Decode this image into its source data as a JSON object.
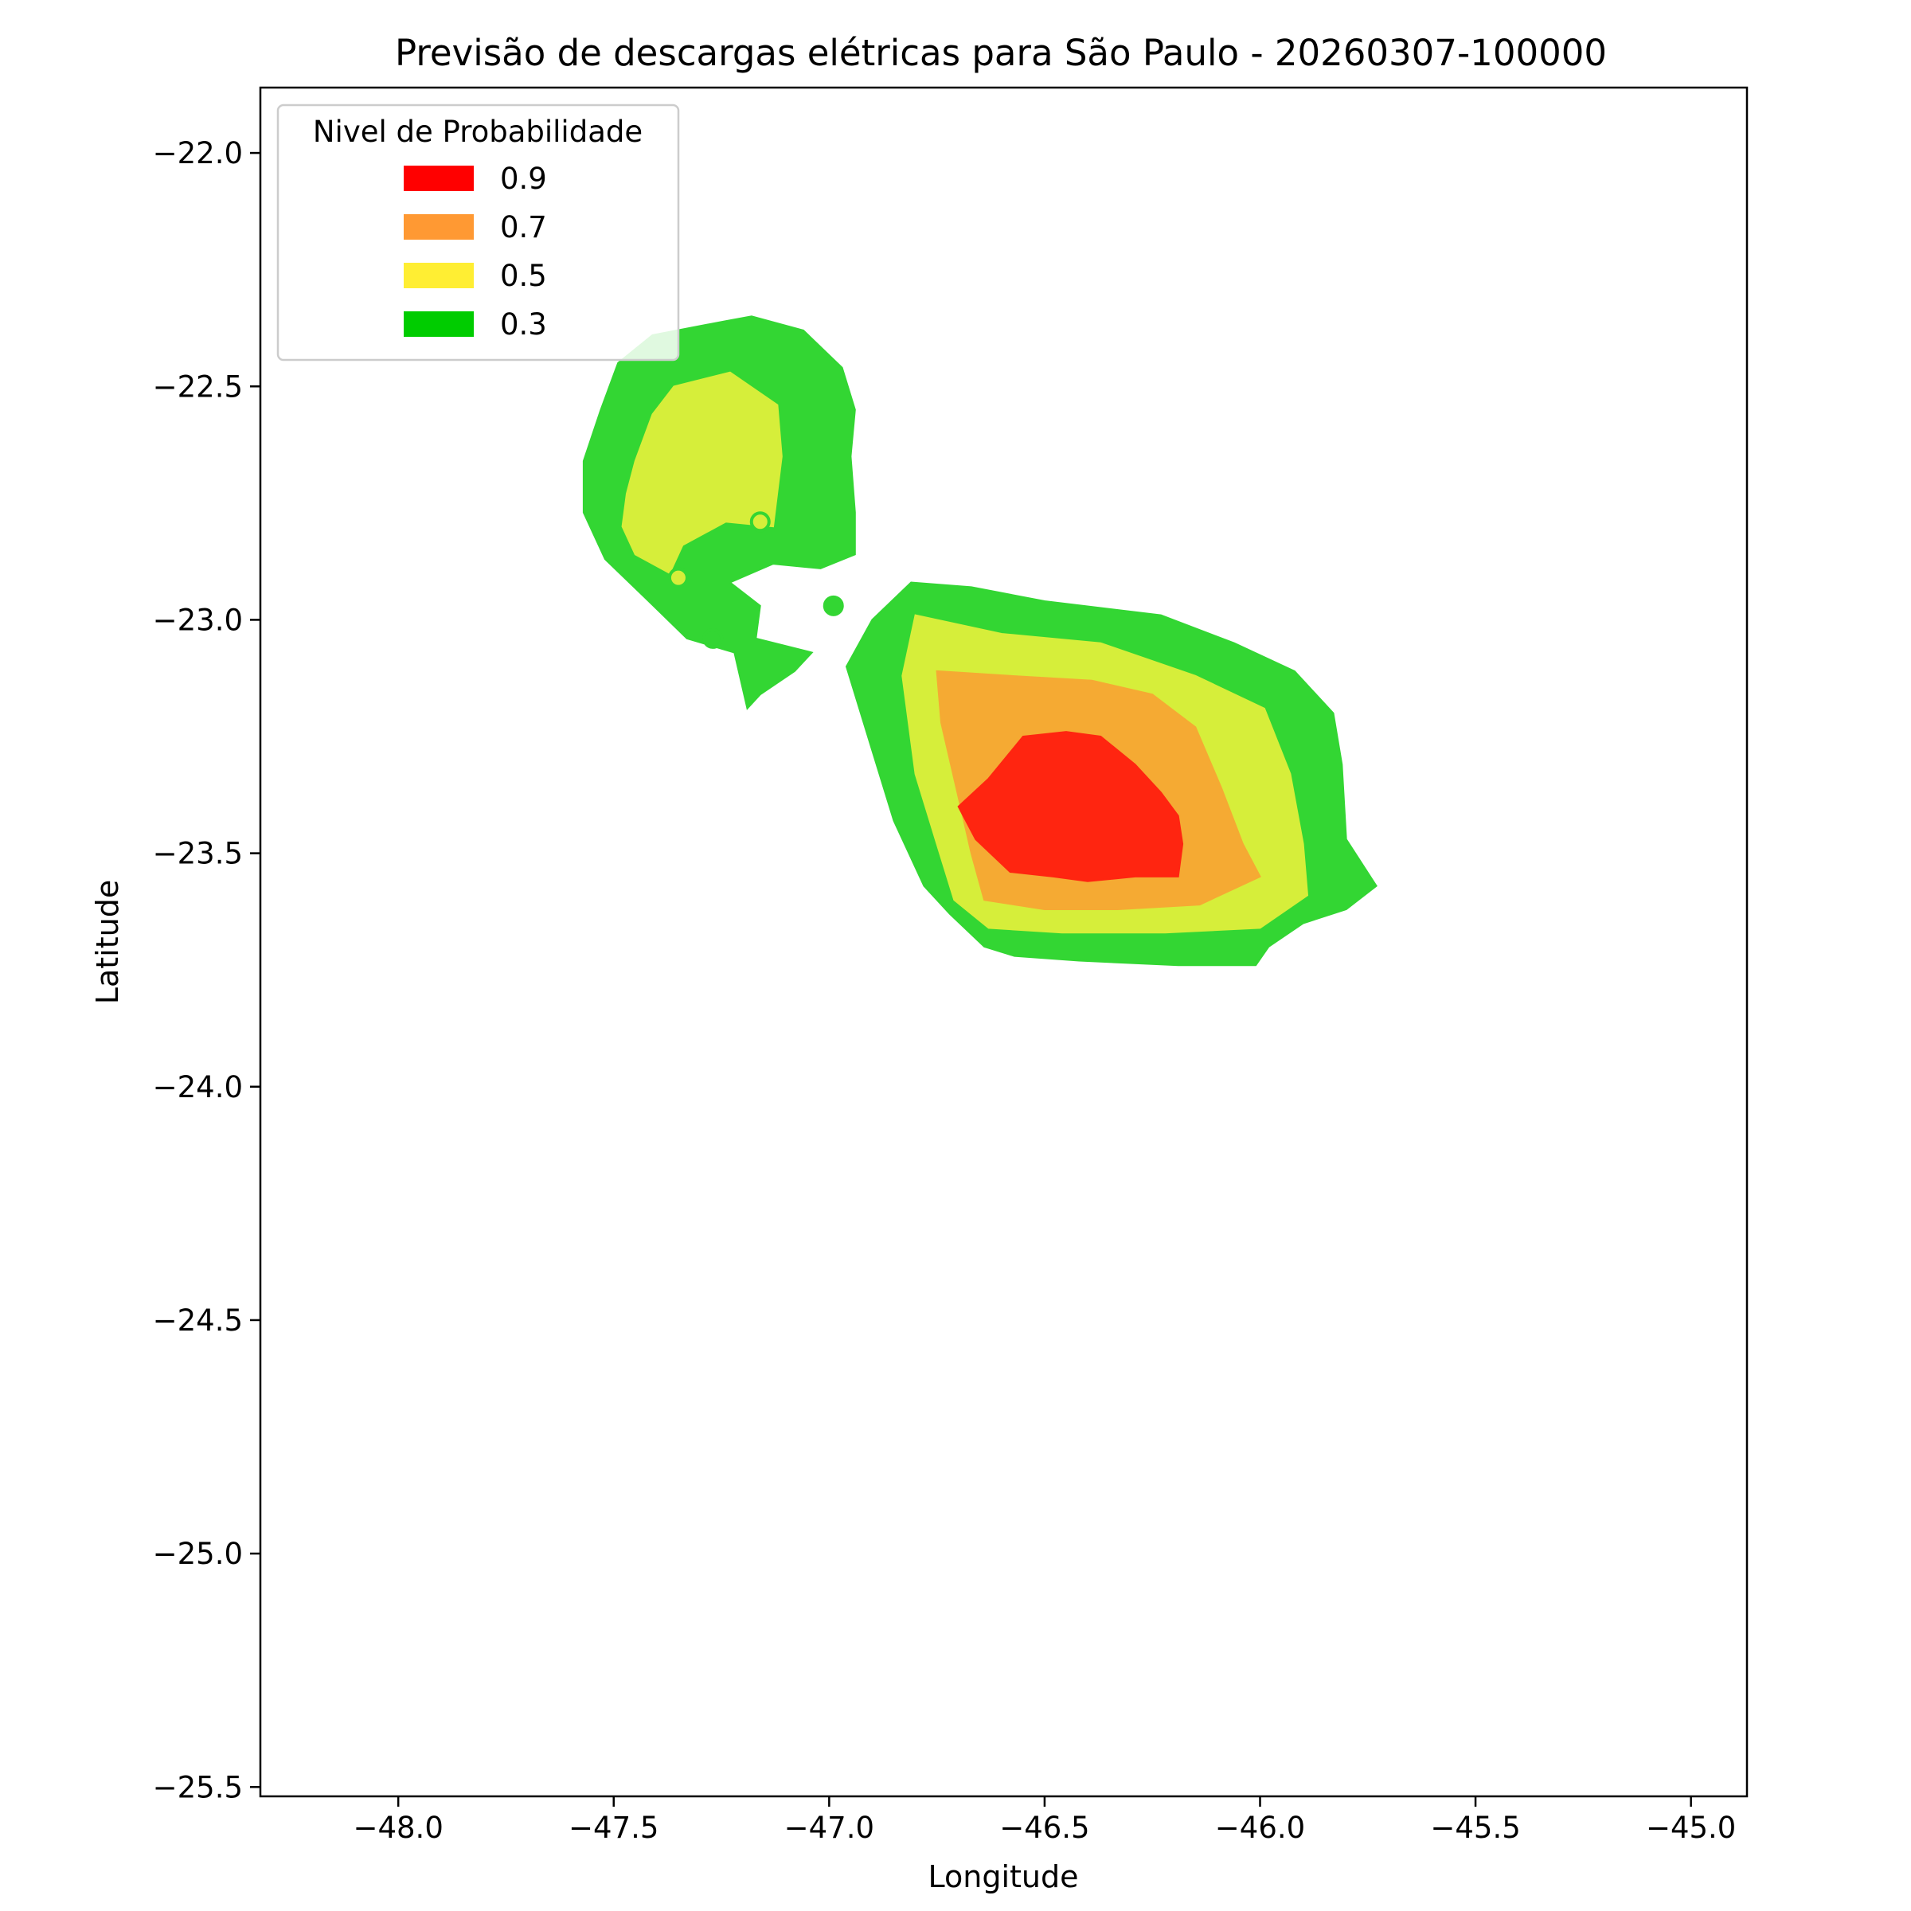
{
  "chart_data": {
    "type": "heatmap",
    "subtype": "filled-contour-map",
    "title": "Previsão de descargas elétricas para São Paulo - 20260307-100000",
    "xlabel": "Longitude",
    "ylabel": "Latitude",
    "xlim": [
      -48.32,
      -44.87
    ],
    "ylim": [
      -25.52,
      -21.86
    ],
    "x_ticks": [
      -48.0,
      -47.5,
      -47.0,
      -46.5,
      -46.0,
      -45.5,
      -45.0
    ],
    "x_tick_labels": [
      "−48.0",
      "−47.5",
      "−47.0",
      "−46.5",
      "−46.0",
      "−45.5",
      "−45.0"
    ],
    "y_ticks": [
      -22.0,
      -22.5,
      -23.0,
      -23.5,
      -24.0,
      -24.5,
      -25.0,
      -25.5
    ],
    "y_tick_labels": [
      "−22.0",
      "−22.5",
      "−23.0",
      "−23.5",
      "−24.0",
      "−24.5",
      "−25.0",
      "−25.5"
    ],
    "grid": false,
    "legend": {
      "title": "Nivel de Probabilidade",
      "placement": "top-left",
      "entries": [
        {
          "label": "0.9",
          "color": "#ff0000"
        },
        {
          "label": "0.7",
          "color": "#ff9933"
        },
        {
          "label": "0.5",
          "color": "#ffee33"
        },
        {
          "label": "0.3",
          "color": "#00cc00"
        }
      ]
    },
    "regions": [
      {
        "level": 0.3,
        "color": "#33d633",
        "polygon": [
          [
            -47.41,
            -22.39
          ],
          [
            -47.24,
            -22.36
          ],
          [
            -47.18,
            -22.35
          ],
          [
            -47.06,
            -22.38
          ],
          [
            -46.97,
            -22.46
          ],
          [
            -46.94,
            -22.55
          ],
          [
            -46.95,
            -22.65
          ],
          [
            -46.94,
            -22.77
          ],
          [
            -46.94,
            -22.86
          ],
          [
            -47.02,
            -22.89
          ],
          [
            -47.13,
            -22.88
          ],
          [
            -47.23,
            -22.92
          ],
          [
            -47.16,
            -22.97
          ],
          [
            -47.17,
            -23.04
          ],
          [
            -47.04,
            -23.07
          ],
          [
            -47.08,
            -23.11
          ],
          [
            -47.16,
            -23.16
          ],
          [
            -47.19,
            -23.19
          ],
          [
            -47.22,
            -23.07
          ],
          [
            -47.33,
            -23.04
          ],
          [
            -47.43,
            -22.95
          ],
          [
            -47.52,
            -22.87
          ],
          [
            -47.57,
            -22.77
          ],
          [
            -47.57,
            -22.66
          ],
          [
            -47.53,
            -22.55
          ],
          [
            -47.49,
            -22.45
          ]
        ]
      },
      {
        "level": 0.5,
        "color": "#d6ee3a",
        "polygon": [
          [
            -47.36,
            -22.5
          ],
          [
            -47.23,
            -22.47
          ],
          [
            -47.12,
            -22.54
          ],
          [
            -47.11,
            -22.65
          ],
          [
            -47.13,
            -22.8
          ],
          [
            -47.24,
            -22.79
          ],
          [
            -47.34,
            -22.84
          ],
          [
            -47.37,
            -22.9
          ],
          [
            -47.45,
            -22.86
          ],
          [
            -47.48,
            -22.8
          ],
          [
            -47.47,
            -22.73
          ],
          [
            -47.45,
            -22.66
          ],
          [
            -47.41,
            -22.56
          ]
        ]
      },
      {
        "level": 0.3,
        "color": "#33d633",
        "polygon": [
          [
            -46.81,
            -22.92
          ],
          [
            -46.67,
            -22.93
          ],
          [
            -46.5,
            -22.96
          ],
          [
            -46.23,
            -22.99
          ],
          [
            -46.06,
            -23.05
          ],
          [
            -45.92,
            -23.11
          ],
          [
            -45.83,
            -23.2
          ],
          [
            -45.81,
            -23.31
          ],
          [
            -45.8,
            -23.47
          ],
          [
            -45.73,
            -23.57
          ],
          [
            -45.8,
            -23.62
          ],
          [
            -45.9,
            -23.65
          ],
          [
            -45.98,
            -23.7
          ],
          [
            -46.01,
            -23.74
          ],
          [
            -46.19,
            -23.74
          ],
          [
            -46.42,
            -23.73
          ],
          [
            -46.57,
            -23.72
          ],
          [
            -46.64,
            -23.7
          ],
          [
            -46.72,
            -23.63
          ],
          [
            -46.78,
            -23.57
          ],
          [
            -46.85,
            -23.43
          ],
          [
            -46.9,
            -23.28
          ],
          [
            -46.96,
            -23.1
          ],
          [
            -46.9,
            -23.0
          ]
        ]
      },
      {
        "level": 0.5,
        "color": "#d6ee3a",
        "polygon": [
          [
            -46.8,
            -22.99
          ],
          [
            -46.6,
            -23.03
          ],
          [
            -46.37,
            -23.05
          ],
          [
            -46.15,
            -23.12
          ],
          [
            -45.99,
            -23.19
          ],
          [
            -45.93,
            -23.33
          ],
          [
            -45.9,
            -23.48
          ],
          [
            -45.89,
            -23.59
          ],
          [
            -46.0,
            -23.66
          ],
          [
            -46.22,
            -23.67
          ],
          [
            -46.46,
            -23.67
          ],
          [
            -46.63,
            -23.66
          ],
          [
            -46.71,
            -23.6
          ],
          [
            -46.75,
            -23.48
          ],
          [
            -46.8,
            -23.33
          ],
          [
            -46.83,
            -23.12
          ]
        ]
      },
      {
        "level": 0.7,
        "color": "#f5aa33",
        "polygon": [
          [
            -46.75,
            -23.11
          ],
          [
            -46.58,
            -23.12
          ],
          [
            -46.39,
            -23.13
          ],
          [
            -46.25,
            -23.16
          ],
          [
            -46.15,
            -23.23
          ],
          [
            -46.09,
            -23.36
          ],
          [
            -46.04,
            -23.48
          ],
          [
            -46.0,
            -23.55
          ],
          [
            -46.14,
            -23.61
          ],
          [
            -46.33,
            -23.62
          ],
          [
            -46.5,
            -23.62
          ],
          [
            -46.64,
            -23.6
          ],
          [
            -46.67,
            -23.5
          ],
          [
            -46.7,
            -23.38
          ],
          [
            -46.74,
            -23.22
          ]
        ]
      },
      {
        "level": 0.9,
        "color": "#ff2510",
        "polygon": [
          [
            -46.55,
            -23.25
          ],
          [
            -46.45,
            -23.24
          ],
          [
            -46.37,
            -23.25
          ],
          [
            -46.29,
            -23.31
          ],
          [
            -46.23,
            -23.37
          ],
          [
            -46.19,
            -23.42
          ],
          [
            -46.18,
            -23.48
          ],
          [
            -46.19,
            -23.55
          ],
          [
            -46.29,
            -23.55
          ],
          [
            -46.4,
            -23.56
          ],
          [
            -46.48,
            -23.55
          ],
          [
            -46.58,
            -23.54
          ],
          [
            -46.66,
            -23.47
          ],
          [
            -46.7,
            -23.4
          ],
          [
            -46.63,
            -23.34
          ]
        ]
      }
    ],
    "points": [
      {
        "lon": -47.16,
        "lat": -22.79,
        "level": 0.5,
        "color": "#d6ee3a"
      },
      {
        "lon": -47.35,
        "lat": -22.91,
        "level": 0.5,
        "color": "#d6ee3a"
      },
      {
        "lon": -46.99,
        "lat": -22.97,
        "level": 0.3,
        "color": "#33d633"
      },
      {
        "lon": -47.27,
        "lat": -23.04,
        "level": 0.3,
        "color": "#33d633"
      }
    ]
  }
}
